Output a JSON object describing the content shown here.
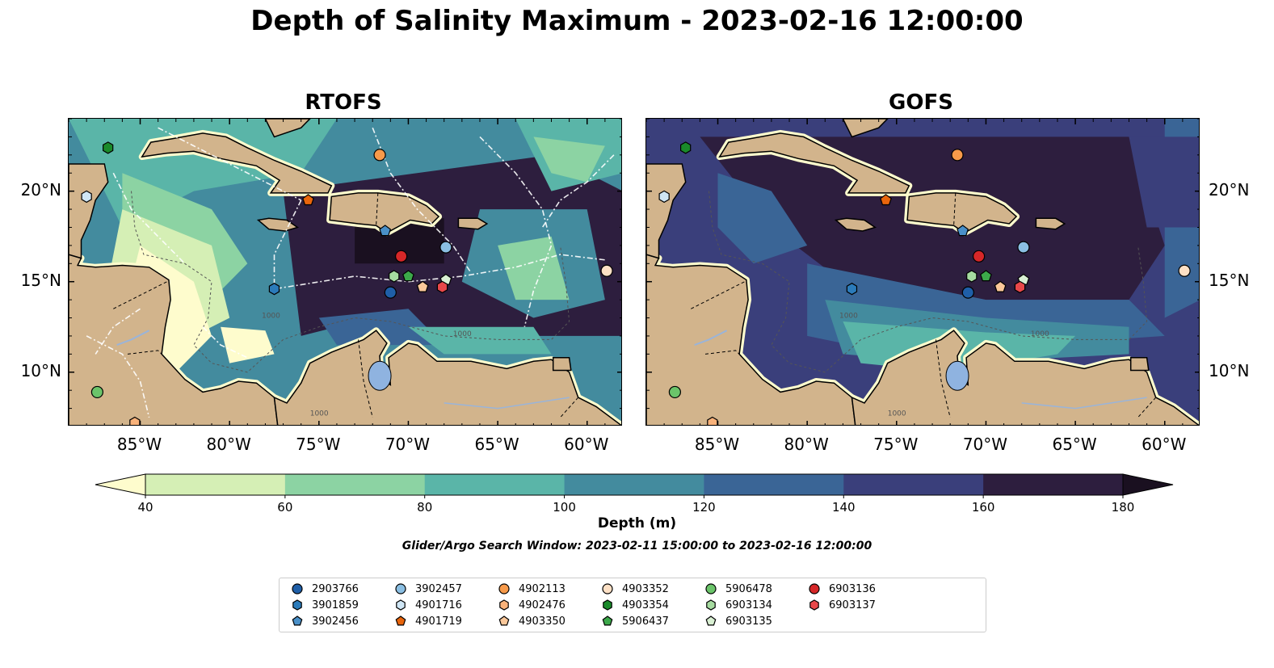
{
  "title": "Depth of Salinity Maximum - 2023-02-16 12:00:00",
  "panels": [
    {
      "title": "RTOFS"
    },
    {
      "title": "GOFS"
    }
  ],
  "map": {
    "lon_range": [
      -89,
      -58
    ],
    "lat_range": [
      7,
      24
    ],
    "lon_ticks": [
      -85,
      -80,
      -75,
      -70,
      -65,
      -60
    ],
    "lat_ticks": [
      10,
      15,
      20
    ],
    "lon_tick_labels": [
      "85°W",
      "80°W",
      "75°W",
      "70°W",
      "65°W",
      "60°W"
    ],
    "lat_tick_labels": [
      "10°N",
      "15°N",
      "20°N"
    ],
    "land_color": "#d2b48c",
    "contour_labels": [
      "1000",
      "1000",
      "1000"
    ]
  },
  "colorbar": {
    "label": "Depth (m)",
    "ticks": [
      40,
      60,
      80,
      100,
      120,
      140,
      160,
      180
    ],
    "tick_labels": [
      "40",
      "60",
      "80",
      "100",
      "120",
      "140",
      "160",
      "180"
    ],
    "colors": [
      "#fefccd",
      "#d5efb5",
      "#8cd3a3",
      "#5ab5a8",
      "#438b9e",
      "#3a6596",
      "#3a3f7b",
      "#2d1e3e",
      "#1a1020"
    ],
    "extend": "both"
  },
  "search_window": "Glider/Argo Search Window: 2023-02-11 15:00:00 to 2023-02-16 12:00:00",
  "legend": {
    "entries": [
      {
        "id": "2903766",
        "marker": "circle",
        "color": "#1f5fa8",
        "lon": -71.0,
        "lat": 14.4
      },
      {
        "id": "3901859",
        "marker": "hexagon",
        "color": "#2b7bba",
        "lon": -77.5,
        "lat": 14.6
      },
      {
        "id": "3902456",
        "marker": "pentagon",
        "color": "#4a90c8",
        "lon": -71.3,
        "lat": 17.8
      },
      {
        "id": "3902457",
        "marker": "circle",
        "color": "#8bbfe3",
        "lon": -67.9,
        "lat": 16.9
      },
      {
        "id": "4901716",
        "marker": "hexagon",
        "color": "#cfe6f5",
        "lon": -88.0,
        "lat": 19.7
      },
      {
        "id": "4901719",
        "marker": "pentagon",
        "color": "#e8650c",
        "lon": -75.6,
        "lat": 19.5
      },
      {
        "id": "4902113",
        "marker": "circle",
        "color": "#f79a4a",
        "lon": -71.6,
        "lat": 22.0
      },
      {
        "id": "4902476",
        "marker": "hexagon",
        "color": "#f9b27a",
        "lon": -85.3,
        "lat": 7.2
      },
      {
        "id": "4903350",
        "marker": "pentagon",
        "color": "#fbc89a",
        "lon": -69.2,
        "lat": 14.7
      },
      {
        "id": "4903352",
        "marker": "circle",
        "color": "#fde0c5",
        "lon": -58.9,
        "lat": 15.6
      },
      {
        "id": "4903354",
        "marker": "hexagon",
        "color": "#1a8a2a",
        "lon": -86.8,
        "lat": 22.4
      },
      {
        "id": "5906437",
        "marker": "pentagon",
        "color": "#3ca84a",
        "lon": -70.0,
        "lat": 15.3
      },
      {
        "id": "5906478",
        "marker": "circle",
        "color": "#6bc46a",
        "lon": -87.4,
        "lat": 8.9
      },
      {
        "id": "6903134",
        "marker": "hexagon",
        "color": "#a6dba0",
        "lon": -70.8,
        "lat": 15.3
      },
      {
        "id": "6903135",
        "marker": "pentagon",
        "color": "#d9f0d3",
        "lon": -67.9,
        "lat": 15.1
      },
      {
        "id": "6903136",
        "marker": "circle",
        "color": "#d62728",
        "lon": -70.4,
        "lat": 16.4
      },
      {
        "id": "6903137",
        "marker": "hexagon",
        "color": "#e8484a",
        "lon": -68.1,
        "lat": 14.7
      }
    ]
  }
}
